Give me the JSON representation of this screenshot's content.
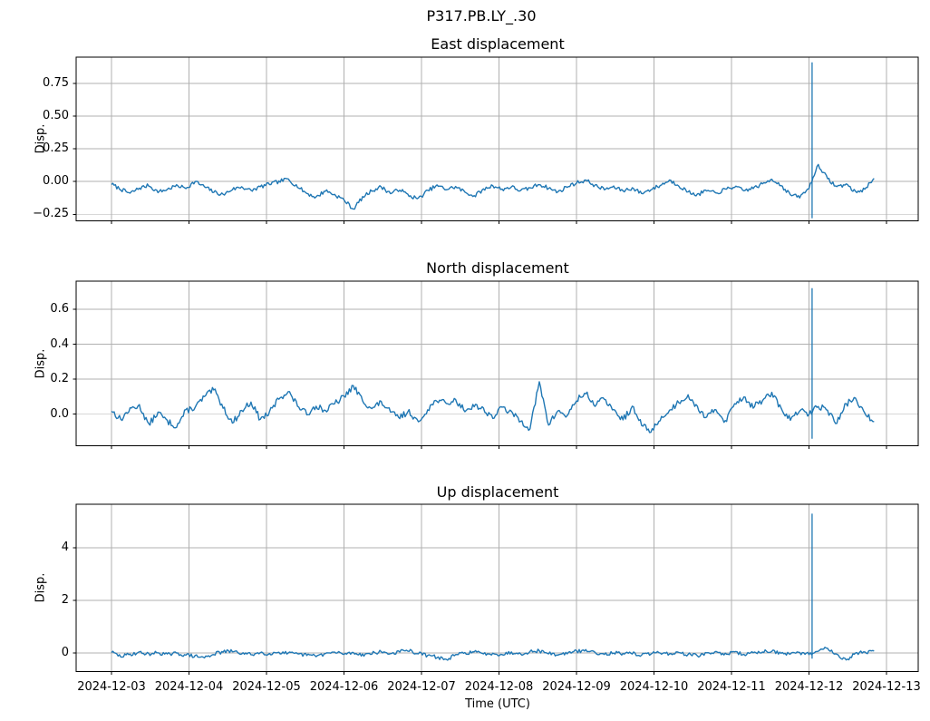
{
  "suptitle": "P317.PB.LY_.30",
  "xlabel": "Time (UTC)",
  "x_unit": "days since 2024-12-03 00:00 UTC",
  "x_tick_labels": [
    "2024-12-03",
    "2024-12-04",
    "2024-12-05",
    "2024-12-06",
    "2024-12-07",
    "2024-12-08",
    "2024-12-09",
    "2024-12-10",
    "2024-12-11",
    "2024-12-12",
    "2024-12-13"
  ],
  "xlim_days": [
    -0.456,
    10.41
  ],
  "colors": {
    "line": "#1f77b4",
    "grid": "#b0b0b0",
    "spine": "#000000",
    "text": "#000000"
  },
  "chart_data": [
    {
      "type": "line",
      "title": "East displacement",
      "ylabel": "Disp.",
      "yticks": [
        0.75,
        0.5,
        0.25,
        0,
        -0.25
      ],
      "ytick_labels": [
        "0.75",
        "0.50",
        "0.25",
        "0.00",
        "−0.25"
      ],
      "ylim": [
        -0.3,
        0.95
      ],
      "grid": true,
      "noise_band": 0.015,
      "spike": {
        "t": 9.04,
        "top": 0.91,
        "bottom": -0.28
      },
      "series": {
        "name": "east",
        "t0": 0,
        "dt": 0.12,
        "y": [
          -0.02,
          -0.06,
          -0.09,
          -0.05,
          -0.03,
          -0.08,
          -0.06,
          -0.03,
          -0.05,
          0.0,
          -0.04,
          -0.08,
          -0.1,
          -0.06,
          -0.04,
          -0.07,
          -0.04,
          -0.02,
          0.0,
          0.02,
          -0.04,
          -0.09,
          -0.12,
          -0.07,
          -0.1,
          -0.14,
          -0.21,
          -0.12,
          -0.07,
          -0.04,
          -0.09,
          -0.06,
          -0.11,
          -0.13,
          -0.07,
          -0.03,
          -0.06,
          -0.04,
          -0.08,
          -0.11,
          -0.06,
          -0.03,
          -0.06,
          -0.04,
          -0.07,
          -0.05,
          -0.02,
          -0.05,
          -0.08,
          -0.04,
          -0.01,
          0.01,
          -0.03,
          -0.06,
          -0.04,
          -0.07,
          -0.05,
          -0.09,
          -0.06,
          -0.03,
          0.01,
          -0.03,
          -0.08,
          -0.1,
          -0.07,
          -0.09,
          -0.06,
          -0.04,
          -0.07,
          -0.05,
          -0.02,
          0.02,
          -0.03,
          -0.1,
          -0.12,
          -0.05,
          0.13,
          0.02,
          -0.04,
          -0.02,
          -0.08,
          -0.06,
          0.03
        ]
      }
    },
    {
      "type": "line",
      "title": "North displacement",
      "ylabel": "Disp.",
      "yticks": [
        0.6,
        0.4,
        0.2,
        0
      ],
      "ytick_labels": [
        "0.6",
        "0.4",
        "0.2",
        "0.0"
      ],
      "ylim": [
        -0.18,
        0.76
      ],
      "grid": true,
      "noise_band": 0.018,
      "spike": {
        "t": 9.04,
        "top": 0.72,
        "bottom": -0.14
      },
      "series": {
        "name": "north",
        "t0": 0,
        "dt": 0.12,
        "y": [
          0.02,
          -0.03,
          0.03,
          0.05,
          -0.06,
          0.01,
          -0.04,
          -0.07,
          0.02,
          0.04,
          0.1,
          0.14,
          0.04,
          -0.05,
          0.02,
          0.07,
          -0.03,
          0.01,
          0.09,
          0.13,
          0.05,
          0.0,
          0.05,
          0.02,
          0.06,
          0.1,
          0.16,
          0.08,
          0.03,
          0.07,
          0.01,
          -0.02,
          0.02,
          -0.05,
          0.03,
          0.08,
          0.06,
          0.08,
          0.02,
          0.05,
          0.03,
          -0.02,
          0.04,
          0.01,
          -0.04,
          -0.08,
          0.18,
          -0.06,
          0.02,
          -0.01,
          0.08,
          0.12,
          0.05,
          0.09,
          0.02,
          -0.03,
          0.04,
          -0.06,
          -0.1,
          -0.03,
          0.02,
          0.07,
          0.11,
          0.04,
          -0.02,
          0.03,
          -0.04,
          0.06,
          0.1,
          0.04,
          0.08,
          0.12,
          0.03,
          -0.03,
          0.02,
          0.0,
          0.05,
          0.02,
          -0.05,
          0.06,
          0.09,
          0.0,
          -0.04
        ]
      }
    },
    {
      "type": "line",
      "title": "Up displacement",
      "ylabel": "Disp.",
      "yticks": [
        4,
        2,
        0
      ],
      "ytick_labels": [
        "4",
        "2",
        "0"
      ],
      "ylim": [
        -0.71,
        5.66
      ],
      "grid": true,
      "noise_band": 0.07,
      "spike": {
        "t": 9.04,
        "top": 5.3,
        "bottom": -0.22
      },
      "series": {
        "name": "up",
        "t0": 0,
        "dt": 0.12,
        "y": [
          0.03,
          -0.14,
          -0.05,
          0.02,
          -0.04,
          0.01,
          -0.06,
          -0.02,
          -0.08,
          -0.12,
          -0.18,
          -0.04,
          0.04,
          0.06,
          -0.02,
          -0.06,
          0.01,
          -0.03,
          0.03,
          -0.02,
          -0.05,
          -0.08,
          -0.12,
          -0.03,
          0.02,
          -0.04,
          0.01,
          -0.06,
          -0.02,
          0.04,
          -0.03,
          0.05,
          0.08,
          -0.02,
          -0.1,
          -0.16,
          -0.26,
          -0.08,
          0.0,
          0.04,
          -0.04,
          -0.01,
          -0.06,
          0.02,
          -0.03,
          0.05,
          0.08,
          -0.02,
          -0.07,
          -0.01,
          0.06,
          0.1,
          0.02,
          -0.04,
          0.01,
          -0.05,
          -0.02,
          -0.08,
          -0.03,
          0.02,
          -0.04,
          0.01,
          -0.06,
          -0.1,
          -0.02,
          0.03,
          -0.03,
          0.02,
          -0.05,
          0.0,
          0.05,
          0.08,
          -0.02,
          -0.06,
          0.0,
          -0.04,
          0.06,
          0.2,
          -0.05,
          -0.28,
          -0.02,
          0.04,
          0.05
        ]
      }
    }
  ]
}
